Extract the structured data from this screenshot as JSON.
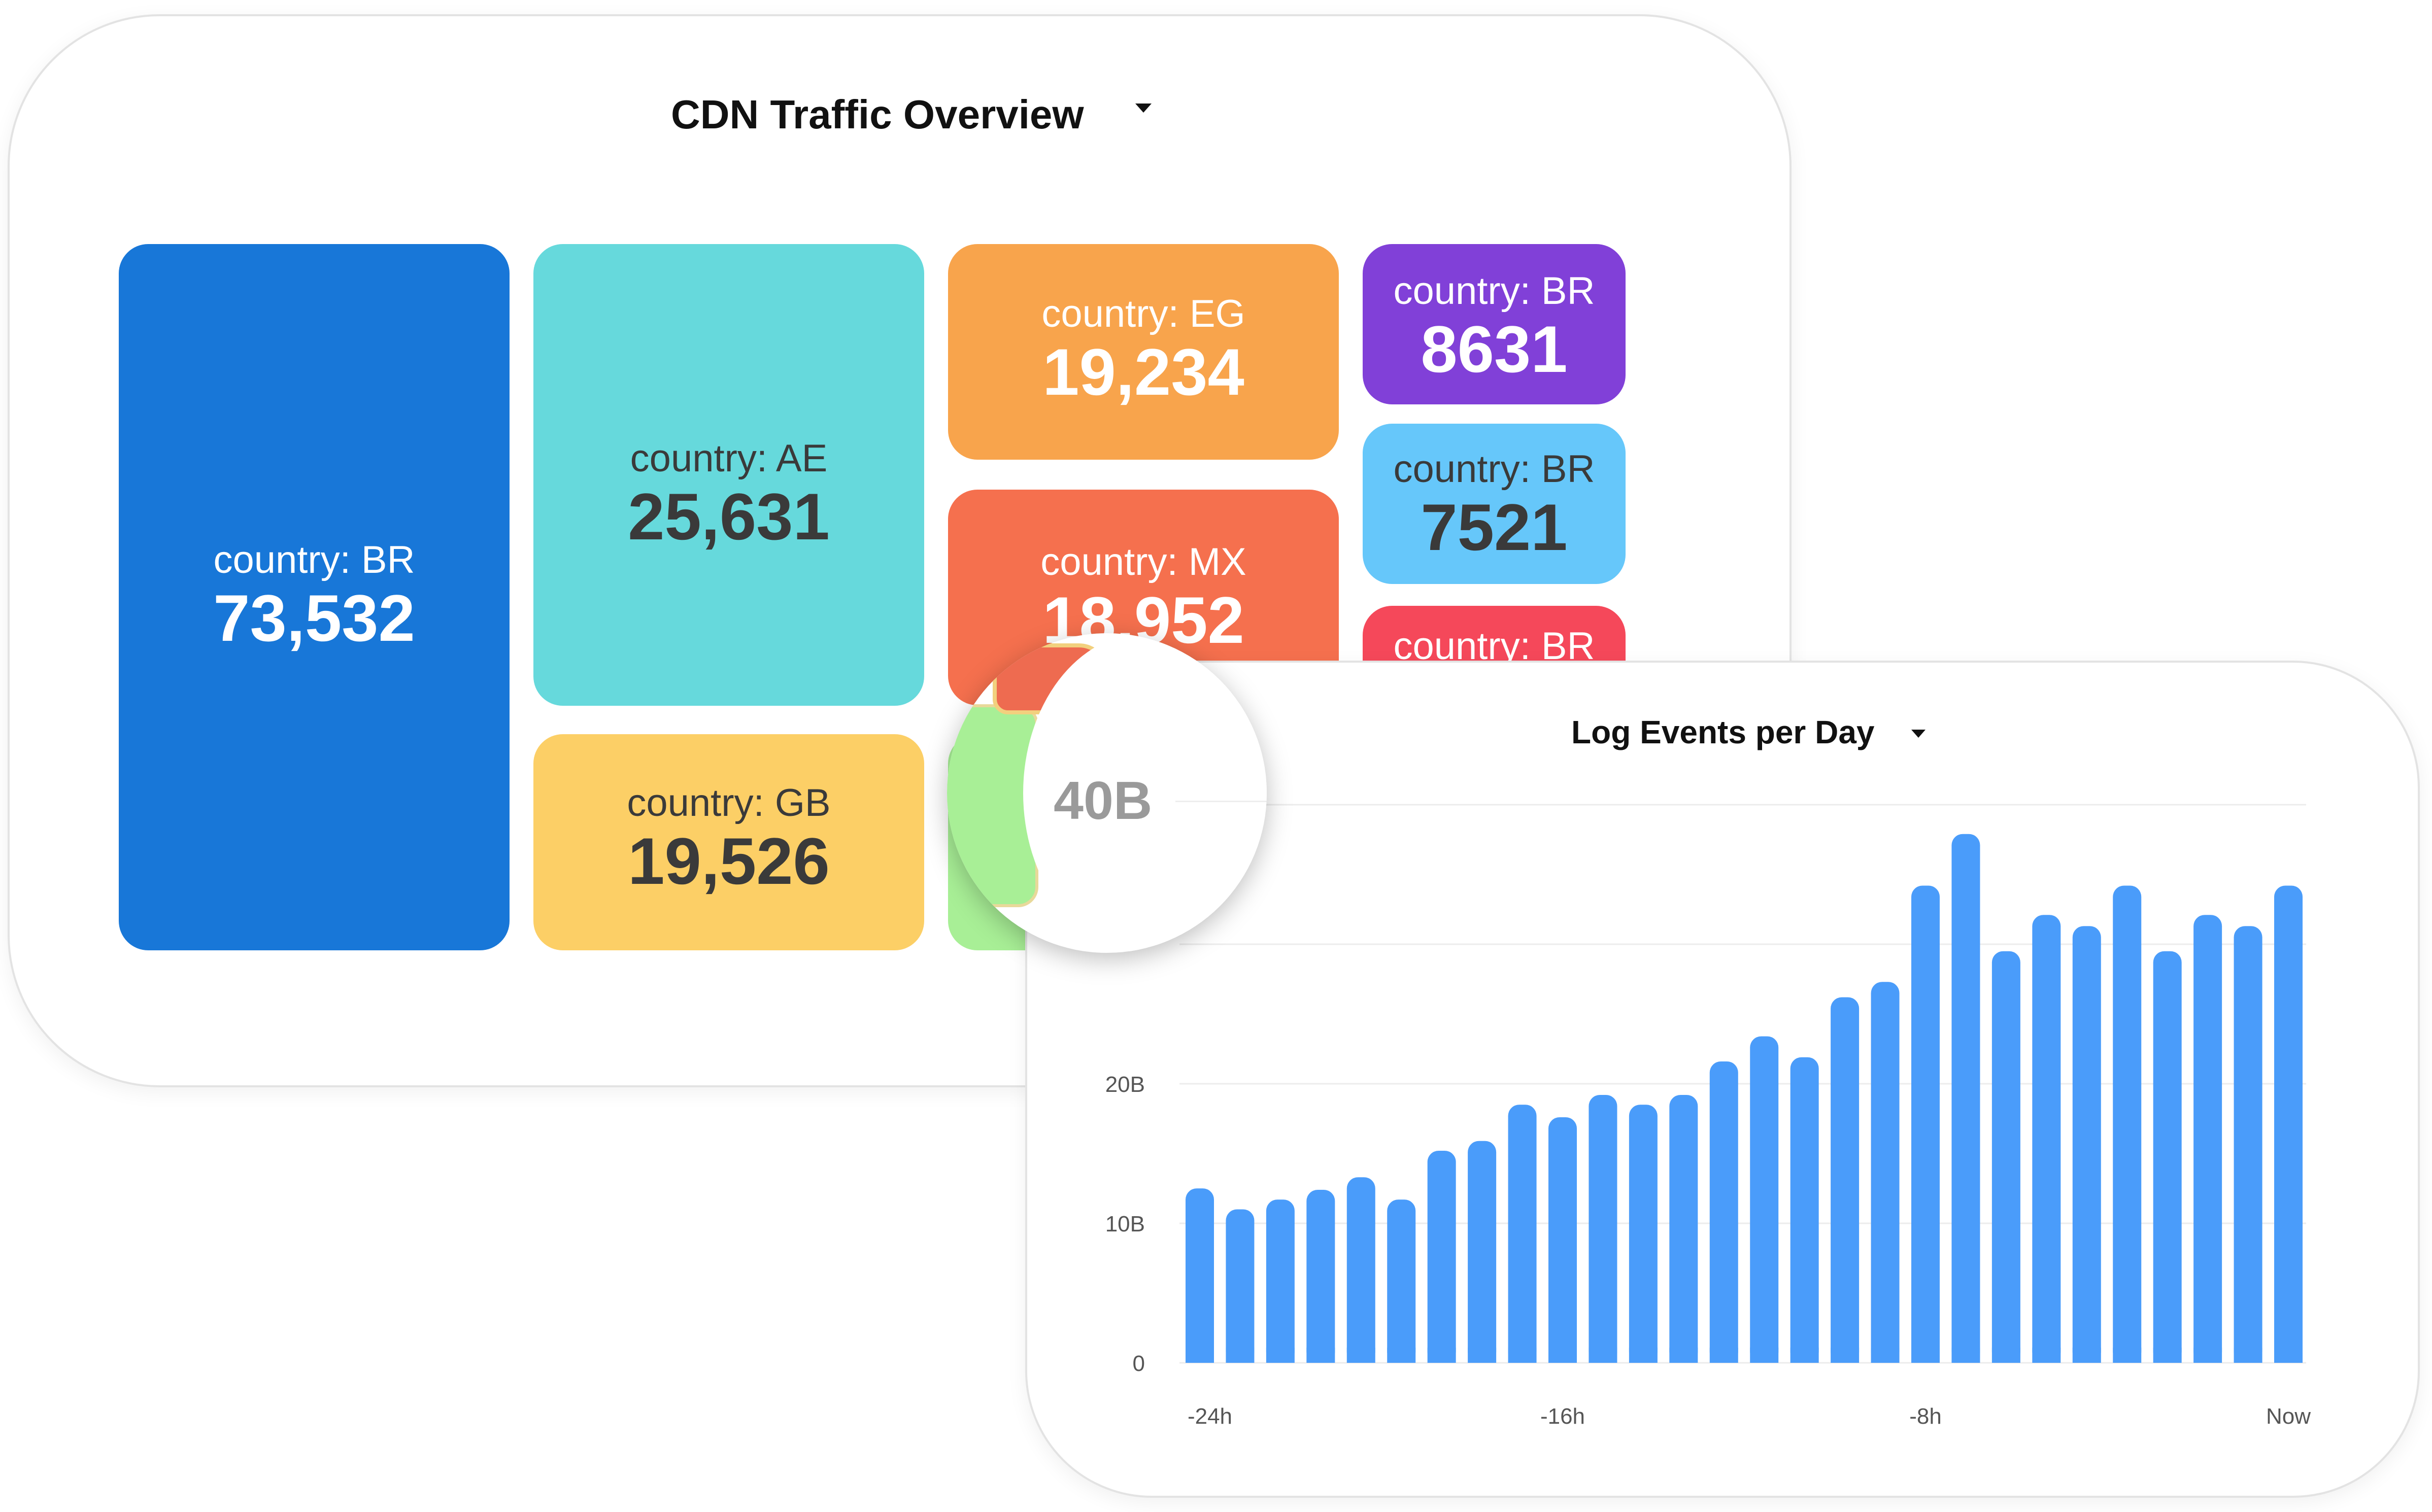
{
  "treemap_card": {
    "title": "CDN Traffic Overview",
    "tiles": [
      {
        "label": "country: BR",
        "value": "73,532",
        "color": "#1877d8",
        "text_color": "#ffffff"
      },
      {
        "label": "country: AE",
        "value": "25,631",
        "color": "#66d9dc",
        "text_color": "#3a3a3a"
      },
      {
        "label": "country: EG",
        "value": "19,234",
        "color": "#f8a44c",
        "text_color": "#ffffff"
      },
      {
        "label": "country: BR",
        "value": "8631",
        "color": "#8140d8",
        "text_color": "#ffffff"
      },
      {
        "label": "country: BR",
        "value": "7521",
        "color": "#66c7fa",
        "text_color": "#3a3a3a"
      },
      {
        "label": "country: MX",
        "value": "18,952",
        "color": "#f5704e",
        "text_color": "#ffffff"
      },
      {
        "label": "country: BR",
        "value": "",
        "color": "#f5485a",
        "text_color": "#ffffff"
      },
      {
        "label": "country: GB",
        "value": "19,526",
        "color": "#fccf66",
        "text_color": "#3a3a3a"
      },
      {
        "label": "",
        "value": "",
        "color": "#a8ef96",
        "text_color": "#3a3a3a"
      }
    ]
  },
  "magnifier": {
    "label": "40B"
  },
  "chart_card": {
    "title": "Log Events per Day"
  },
  "chart_data": {
    "type": "bar",
    "title": "Log Events per Day",
    "xlabel": "",
    "ylabel": "",
    "y_tick_labels": [
      "0",
      "10B",
      "20B"
    ],
    "y_ticks": [
      0,
      10,
      20,
      30,
      40
    ],
    "ylim": [
      0,
      40
    ],
    "y_unit": "B",
    "x_tick_labels": [
      "-24h",
      "-16h",
      "-8h",
      "Now"
    ],
    "grid": true,
    "bar_color": "#4a9cfa",
    "values": [
      12.5,
      11,
      11.7,
      12.4,
      13.3,
      11.7,
      15.2,
      15.9,
      18.5,
      17.6,
      19.2,
      18.5,
      19.2,
      21.6,
      23.4,
      21.9,
      26.2,
      27.3,
      34.2,
      37.9,
      29.5,
      32.1,
      31.3,
      34.2,
      29.5,
      32.1,
      31.3,
      34.2
    ]
  }
}
